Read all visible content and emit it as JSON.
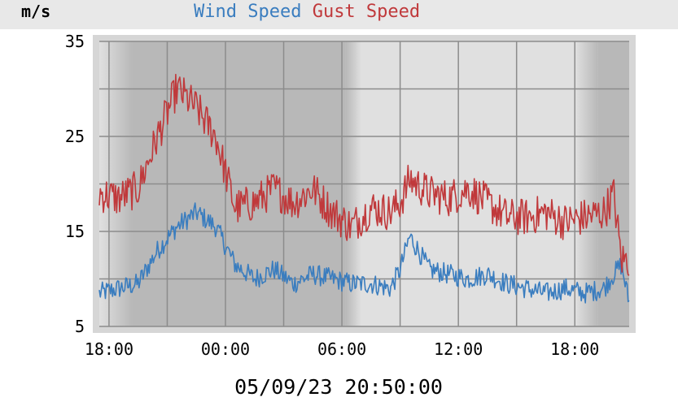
{
  "chart_data": {
    "type": "line",
    "unit_label": "m/s",
    "timestamp": "05/09/23 20:50:00",
    "ylim": [
      5,
      35
    ],
    "yticks": [
      5,
      15,
      25,
      35
    ],
    "x_range_hours": [
      -0.5,
      26.8
    ],
    "xticks": [
      {
        "h": 0,
        "label": "18:00"
      },
      {
        "h": 6,
        "label": "00:00"
      },
      {
        "h": 12,
        "label": "06:00"
      },
      {
        "h": 18,
        "label": "12:00"
      },
      {
        "h": 24,
        "label": "18:00"
      }
    ],
    "grid": true,
    "legend_position": "top",
    "series": [
      {
        "name": "Wind Speed",
        "color": "#3a7dbf",
        "x": [
          -0.5,
          0.5,
          1.5,
          2.5,
          3.5,
          4.5,
          5.5,
          6.5,
          7.5,
          8.5,
          9.5,
          10.5,
          11.5,
          12.5,
          13.5,
          14.5,
          15.0,
          15.5,
          16.5,
          17.5,
          18.5,
          19.5,
          20.5,
          21.5,
          22.5,
          23.5,
          24.5,
          25.5,
          26.0,
          26.4,
          26.8
        ],
        "values": [
          8.5,
          9.0,
          9.5,
          13.0,
          15.5,
          17.0,
          15.5,
          11.5,
          10.0,
          11.0,
          9.5,
          10.5,
          10.0,
          9.5,
          9.5,
          9.0,
          11.0,
          14.5,
          11.0,
          10.5,
          10.0,
          10.5,
          9.5,
          9.0,
          8.5,
          9.0,
          8.5,
          9.0,
          10.5,
          11.5,
          7.5
        ]
      },
      {
        "name": "Gust Speed",
        "color": "#c0393b",
        "x": [
          -0.5,
          0.5,
          1.5,
          2.5,
          3.5,
          4.5,
          5.5,
          6.5,
          7.5,
          8.5,
          9.5,
          10.5,
          11.5,
          12.5,
          13.5,
          14.5,
          15.0,
          15.5,
          16.5,
          17.5,
          18.5,
          19.5,
          20.5,
          21.5,
          22.5,
          23.5,
          24.5,
          25.5,
          26.0,
          26.4,
          26.8
        ],
        "values": [
          19.0,
          18.5,
          19.5,
          25.0,
          30.0,
          28.0,
          25.0,
          17.5,
          18.0,
          19.5,
          18.0,
          19.5,
          17.0,
          15.5,
          17.5,
          17.0,
          18.0,
          20.5,
          19.0,
          18.5,
          19.5,
          18.0,
          16.5,
          16.5,
          17.0,
          16.0,
          16.5,
          17.0,
          19.0,
          12.0,
          12.0
        ]
      }
    ]
  },
  "colors": {
    "plot_bg_day": "#e0e0e0",
    "plot_bg_night": "#b8b8b8",
    "grid": "#8c8c8c",
    "text": "#000000"
  }
}
